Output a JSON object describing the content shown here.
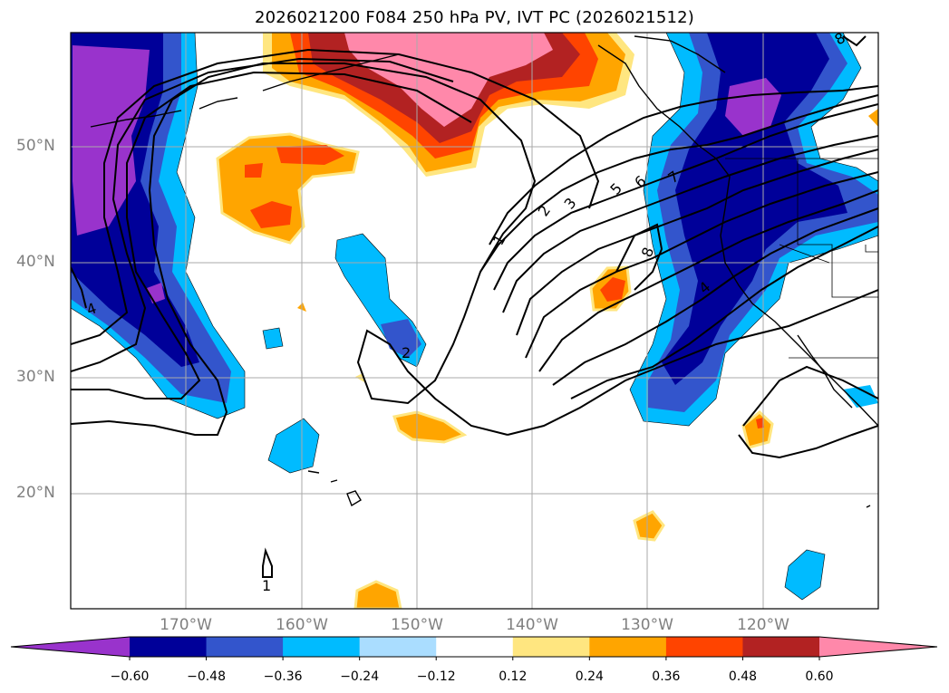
{
  "title": "2026021200 F084 250 hPa PV, IVT PC (2026021512)",
  "lat_labels": [
    "50°N",
    "40°N",
    "30°N",
    "20°N"
  ],
  "lon_labels": [
    "170°W",
    "160°W",
    "150°W",
    "140°W",
    "130°W",
    "120°W"
  ],
  "contour_labels": [
    "1",
    "2",
    "3",
    "5",
    "6",
    "7",
    "8",
    "4",
    "2",
    "4",
    "1",
    "8"
  ],
  "colorbar": {
    "ticks": [
      "−0.60",
      "−0.48",
      "−0.36",
      "−0.24",
      "−0.12",
      "0.12",
      "0.24",
      "0.36",
      "0.48",
      "0.60"
    ],
    "colors": [
      "#9933cc",
      "#000099",
      "#3355cc",
      "#00bbff",
      "#aaddff",
      "#ffffff",
      "#ffe680",
      "#ffa500",
      "#ff4400",
      "#b22222",
      "#ff88aa"
    ]
  },
  "colors": {
    "neg_extreme": "#9933cc",
    "neg_strong": "#000099",
    "neg_mid": "#3355cc",
    "neg_light": "#00bbff",
    "neg_pale": "#aaddff",
    "pos_pale": "#ffe680",
    "pos_light": "#ffa500",
    "pos_mid": "#ff4400",
    "pos_strong": "#b22222",
    "pos_extreme": "#ff88aa"
  }
}
